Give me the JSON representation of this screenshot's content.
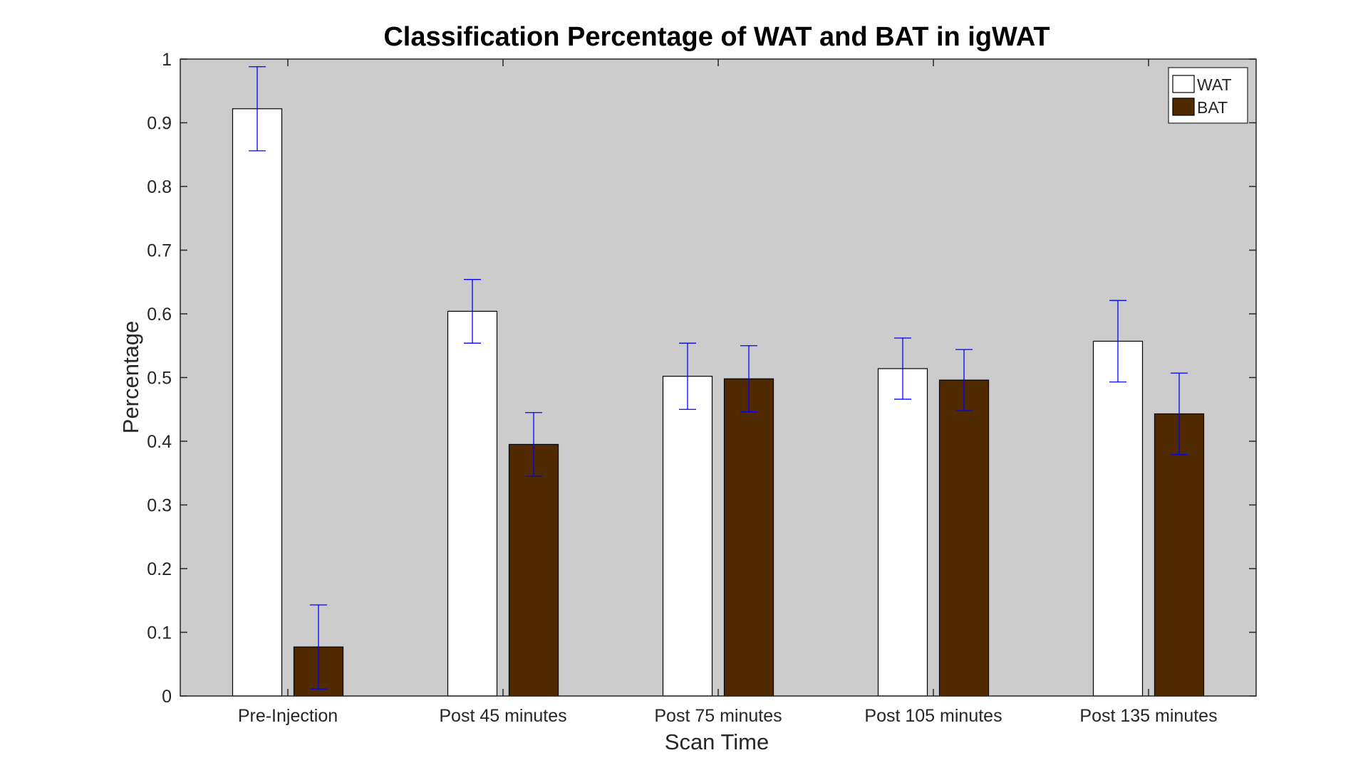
{
  "chart_data": {
    "type": "bar",
    "title": "Classification Percentage of WAT and BAT in igWAT",
    "xlabel": "Scan Time",
    "ylabel": "Percentage",
    "ylim": [
      0,
      1
    ],
    "yticks": [
      "0",
      "0.1",
      "0.2",
      "0.3",
      "0.4",
      "0.5",
      "0.6",
      "0.7",
      "0.8",
      "0.9",
      "1"
    ],
    "categories": [
      "Pre-Injection",
      "Post 45 minutes",
      "Post 75 minutes",
      "Post 105 minutes",
      "Post 135 minutes"
    ],
    "series": [
      {
        "name": "WAT",
        "color": "#ffffff",
        "values": [
          0.922,
          0.604,
          0.502,
          0.514,
          0.557
        ],
        "error": [
          0.066,
          0.05,
          0.052,
          0.048,
          0.064
        ]
      },
      {
        "name": "BAT",
        "color": "#522a00",
        "values": [
          0.077,
          0.395,
          0.498,
          0.496,
          0.443
        ],
        "error": [
          0.066,
          0.05,
          0.052,
          0.048,
          0.064
        ]
      }
    ],
    "plot_background": "#cccccc",
    "error_bar_color": "#0000ff",
    "grid": false,
    "legend_position": "top-right"
  }
}
